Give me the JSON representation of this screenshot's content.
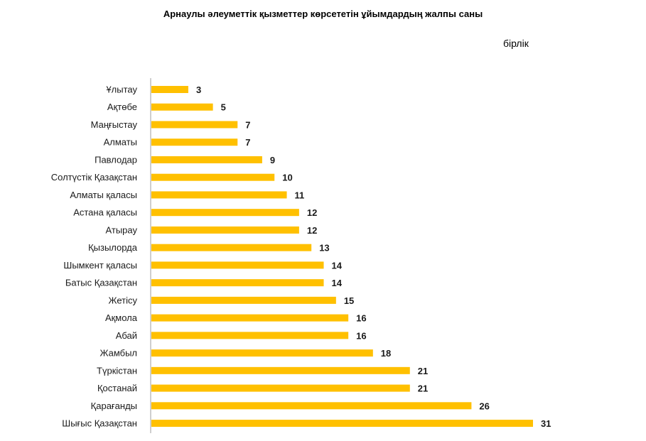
{
  "chart_data": {
    "type": "bar",
    "orientation": "horizontal",
    "title": "Арнаулы әлеуметтік қызметтер көрсететін ұйымдардың жалпы саны",
    "unit": "бірлік",
    "categories": [
      "Ұлытау",
      "Ақтөбе",
      "Маңғыстау",
      "Алматы",
      "Павлодар",
      "Солтүстік Қазақстан",
      "Алматы қаласы",
      "Астана қаласы",
      "Атырау",
      "Қызылорда",
      "Шымкент қаласы",
      "Батыс Қазақстан",
      "Жетісу",
      "Ақмола",
      "Абай",
      "Жамбыл",
      "Түркістан",
      "Қостанай",
      "Қарағанды",
      "Шығыс  Қазақстан"
    ],
    "values": [
      3,
      5,
      7,
      7,
      9,
      10,
      11,
      12,
      12,
      13,
      14,
      14,
      15,
      16,
      16,
      18,
      21,
      21,
      26,
      31
    ],
    "xlim": [
      0,
      31
    ],
    "bar_color": "#FFC000",
    "axis_color": "#bfbfbf",
    "grid": false,
    "legend": false
  }
}
